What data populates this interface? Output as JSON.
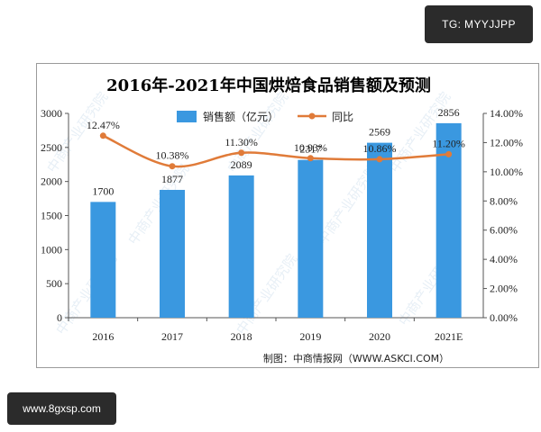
{
  "tags": {
    "top": "TG: MYYJJPP",
    "bottom": "www.8gxsp.com"
  },
  "chart_data": {
    "type": "bar",
    "title": "2016年-2021年中国烘焙食品销售额及预测",
    "categories": [
      "2016",
      "2017",
      "2018",
      "2019",
      "2020",
      "2021E"
    ],
    "series": [
      {
        "name": "销售额（亿元）",
        "kind": "bar",
        "axis": "left",
        "color": "#3a98e0",
        "values": [
          1700,
          1877,
          2089,
          2317,
          2569,
          2856
        ],
        "labels": [
          "1700",
          "1877",
          "2089",
          "2317",
          "2569",
          "2856"
        ]
      },
      {
        "name": "同比",
        "kind": "line",
        "axis": "right",
        "color": "#e07b39",
        "values": [
          12.47,
          10.38,
          11.3,
          10.93,
          10.86,
          11.2
        ],
        "labels": [
          "12.47%",
          "10.38%",
          "11.30%",
          "10.93%",
          "10.86%",
          "11.20%"
        ]
      }
    ],
    "y_left": {
      "min": 0,
      "max": 3000,
      "ticks": [
        "0",
        "500",
        "1000",
        "1500",
        "2000",
        "2500",
        "3000"
      ]
    },
    "y_right": {
      "min": 0,
      "max": 14,
      "ticks": [
        "0.00%",
        "2.00%",
        "4.00%",
        "6.00%",
        "8.00%",
        "10.00%",
        "12.00%",
        "14.00%"
      ]
    },
    "grid": false,
    "legend": "top-center",
    "source": "制图：中商情报网（WWW.ASKCI.COM）",
    "watermark": "中商产业研究院"
  }
}
